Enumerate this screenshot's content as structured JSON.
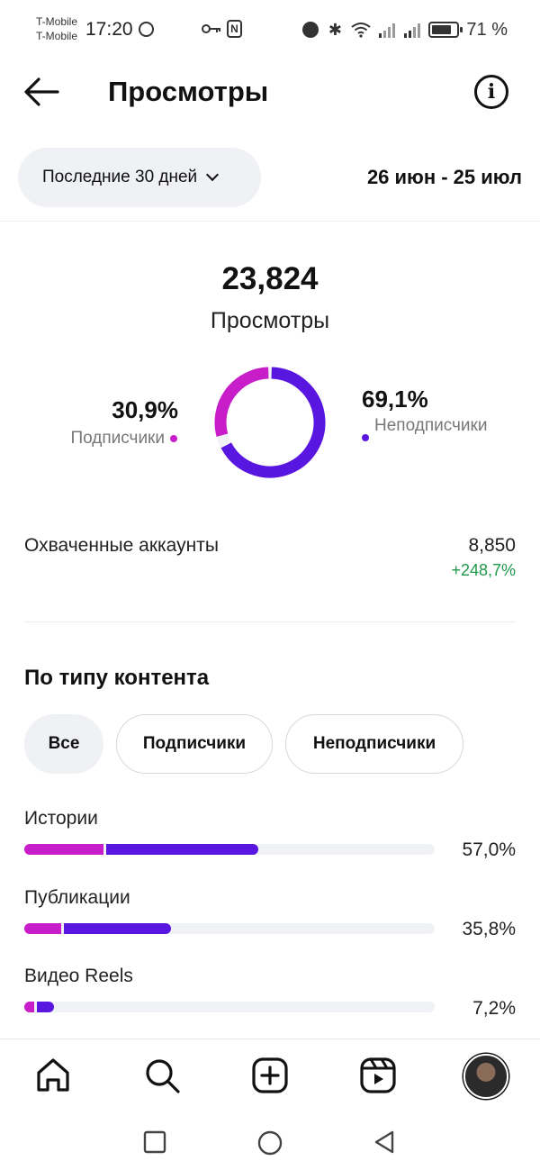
{
  "status_bar": {
    "carrier_1": "T-Mobile",
    "carrier_2": "T-Mobile",
    "time": "17:20",
    "battery": "71 %"
  },
  "header": {
    "title": "Просмотры"
  },
  "date_filter": {
    "range_label": "Последние 30 дней",
    "dates": "26 июн - 25 июл"
  },
  "summary": {
    "total_value": "23,824",
    "total_label": "Просмотры",
    "followers_pct": "30,9%",
    "followers_label": "Подписчики",
    "non_followers_pct": "69,1%",
    "non_followers_label": "Неподписчики",
    "followers_fraction": 0.309,
    "colors": {
      "followers": "#c81ec9",
      "non_followers": "#5916e0"
    }
  },
  "reach": {
    "label": "Охваченные аккаунты",
    "value": "8,850",
    "change": "+248,7%"
  },
  "content_type": {
    "title": "По типу контента",
    "filters": [
      "Все",
      "Подписчики",
      "Неподписчики"
    ],
    "active_filter": 0,
    "rows": [
      {
        "label": "Истории",
        "pct": "57,0%",
        "value": 57.0,
        "followers_share": 0.34
      },
      {
        "label": "Публикации",
        "pct": "35,8%",
        "value": 35.8,
        "followers_share": 0.25
      },
      {
        "label": "Видео Reels",
        "pct": "7,2%",
        "value": 7.2,
        "followers_share": 0.35
      }
    ]
  },
  "bottom_nav": {
    "icons": [
      "home-icon",
      "search-icon",
      "create-icon",
      "reels-icon",
      "profile-avatar"
    ]
  }
}
